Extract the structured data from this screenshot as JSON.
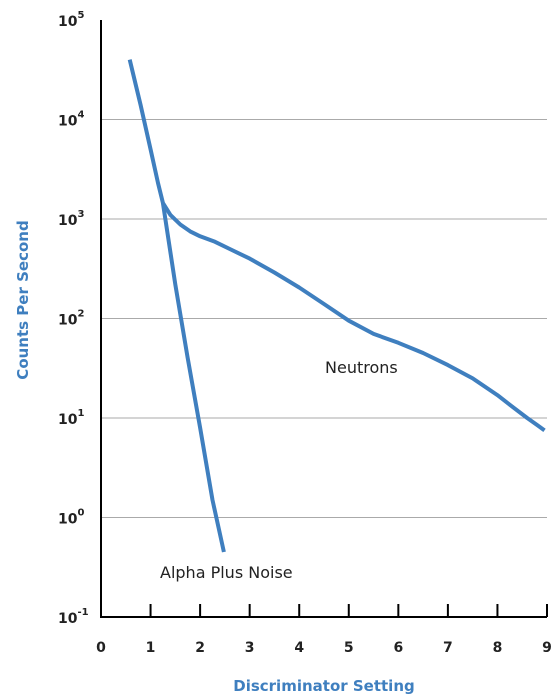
{
  "chart_data": {
    "type": "line",
    "xlabel": "Discriminator Setting",
    "ylabel": "Counts Per Second",
    "x_ticks": [
      "0",
      "1",
      "2",
      "3",
      "4",
      "5",
      "6",
      "7",
      "8",
      "9"
    ],
    "y_ticks": [
      {
        "base": "10",
        "exp": "-1"
      },
      {
        "base": "10",
        "exp": "0"
      },
      {
        "base": "10",
        "exp": "1"
      },
      {
        "base": "10",
        "exp": "2"
      },
      {
        "base": "10",
        "exp": "3"
      },
      {
        "base": "10",
        "exp": "4"
      },
      {
        "base": "10",
        "exp": "5"
      }
    ],
    "xlim": [
      0,
      9
    ],
    "ylim": [
      0.1,
      100000
    ],
    "yscale": "log",
    "grid": "horizontal",
    "colors": {
      "series": "#3f7fbf",
      "axis_title": "#3f7fbf",
      "axis": "#000000",
      "grid": "#aaaaaa"
    },
    "annotations": [
      {
        "text": "Neutrons"
      },
      {
        "text": "Alpha Plus Noise"
      }
    ],
    "series": [
      {
        "id": "neutrons",
        "x": [
          0.58,
          0.8,
          1.0,
          1.15,
          1.25,
          1.4,
          1.6,
          1.8,
          2.0,
          2.3,
          2.6,
          3.0,
          3.5,
          4.0,
          4.5,
          5.0,
          5.5,
          6.0,
          6.5,
          7.0,
          7.5,
          8.0,
          8.3,
          8.6,
          8.8,
          8.95
        ],
        "y": [
          40000,
          14000,
          5000,
          2300,
          1450,
          1100,
          880,
          750,
          670,
          590,
          500,
          400,
          290,
          205,
          140,
          95,
          70,
          57,
          45,
          34,
          25,
          17,
          13,
          10,
          8.5,
          7.5
        ]
      },
      {
        "id": "alpha-plus-noise",
        "x": [
          1.25,
          1.5,
          1.75,
          2.0,
          2.25,
          2.48
        ],
        "y": [
          1450,
          220,
          40,
          8,
          1.5,
          0.45
        ]
      }
    ]
  }
}
